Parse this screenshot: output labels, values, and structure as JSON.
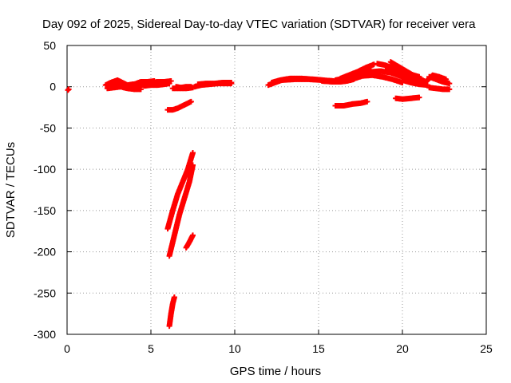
{
  "chart_data": {
    "type": "scatter",
    "title": "Day 092 of 2025, Sidereal Day-to-day VTEC variation (SDTVAR) for receiver vera",
    "xlabel": "GPS time / hours",
    "ylabel": "SDTVAR / TECUs",
    "xlim": [
      0,
      25
    ],
    "ylim": [
      -300,
      50
    ],
    "xticks": [
      "0",
      "5",
      "10",
      "15",
      "20",
      "25"
    ],
    "yticks": [
      "50",
      "0",
      "-50",
      "-100",
      "-150",
      "-200",
      "-250",
      "-300"
    ],
    "grid": true,
    "marker": "+",
    "color": "#ff0000",
    "series": [
      {
        "x": [
          0.05,
          0.1
        ],
        "y": [
          -4,
          -3
        ]
      },
      {
        "x": [
          2.3,
          2.6,
          3.0,
          3.3,
          3.6,
          3.9,
          4.2
        ],
        "y": [
          2,
          5,
          8,
          5,
          2,
          3,
          3
        ]
      },
      {
        "x": [
          2.6,
          3.0,
          3.4,
          3.8,
          4.2
        ],
        "y": [
          4,
          2,
          -1,
          -1,
          0
        ]
      },
      {
        "x": [
          2.4,
          2.8,
          3.2,
          3.6,
          4.0,
          4.4
        ],
        "y": [
          -2,
          -1,
          0,
          -2,
          -3,
          -3
        ]
      },
      {
        "x": [
          4.0,
          4.5,
          5.0,
          5.5,
          5.9
        ],
        "y": [
          0,
          2,
          4,
          5,
          5
        ]
      },
      {
        "x": [
          3.6,
          4.0,
          4.4,
          4.8,
          5.2
        ],
        "y": [
          1,
          3,
          6,
          6,
          7
        ]
      },
      {
        "x": [
          4.6,
          5.0,
          5.4,
          5.8,
          6.1
        ],
        "y": [
          1,
          2,
          2,
          3,
          4
        ]
      },
      {
        "x": [
          5.0,
          5.4,
          5.8,
          6.2
        ],
        "y": [
          5,
          6,
          6,
          7
        ]
      },
      {
        "x": [
          6.5,
          6.8,
          7.1,
          7.4
        ],
        "y": [
          0,
          -1,
          0,
          0
        ]
      },
      {
        "x": [
          6.3,
          6.7,
          7.1,
          7.5
        ],
        "y": [
          -2,
          -2,
          -2,
          -1
        ]
      },
      {
        "x": [
          7.6,
          8.0,
          8.5,
          9.0,
          9.5,
          9.8
        ],
        "y": [
          0,
          2,
          3,
          4,
          4,
          4
        ]
      },
      {
        "x": [
          7.8,
          8.3,
          8.8,
          9.3,
          9.8
        ],
        "y": [
          3,
          4,
          4,
          5,
          5
        ]
      },
      {
        "x": [
          6.0,
          6.3,
          6.6,
          7.0,
          7.4
        ],
        "y": [
          -28,
          -28,
          -26,
          -22,
          -18
        ]
      },
      {
        "x": [
          6.0,
          6.3,
          6.6,
          6.9,
          7.2,
          7.5
        ],
        "y": [
          -172,
          -150,
          -130,
          -115,
          -100,
          -80
        ]
      },
      {
        "x": [
          6.1,
          6.4,
          6.7,
          7.0,
          7.3,
          7.5
        ],
        "y": [
          -205,
          -180,
          -155,
          -135,
          -115,
          -95
        ]
      },
      {
        "x": [
          7.1,
          7.3,
          7.5
        ],
        "y": [
          -195,
          -188,
          -180
        ]
      },
      {
        "x": [
          6.1,
          6.2,
          6.3,
          6.4
        ],
        "y": [
          -290,
          -275,
          -263,
          -255
        ]
      },
      {
        "x": [
          12.2,
          12.7,
          13.3,
          14.0,
          14.7,
          15.3
        ],
        "y": [
          5,
          8,
          10,
          10,
          9,
          8
        ]
      },
      {
        "x": [
          12.0,
          12.8,
          13.6,
          14.4,
          15.2,
          15.9
        ],
        "y": [
          2,
          8,
          9,
          9,
          8,
          7
        ]
      },
      {
        "x": [
          15.2,
          15.8,
          16.3,
          16.7,
          17.1
        ],
        "y": [
          7,
          6,
          6,
          7,
          9
        ]
      },
      {
        "x": [
          16.0,
          16.5,
          17.0,
          17.5,
          18.0
        ],
        "y": [
          8,
          10,
          13,
          17,
          22
        ]
      },
      {
        "x": [
          16.3,
          16.8,
          17.3,
          17.8,
          18.3
        ],
        "y": [
          10,
          14,
          18,
          23,
          27
        ]
      },
      {
        "x": [
          17.0,
          17.6,
          18.2,
          18.8,
          19.4,
          20.0
        ],
        "y": [
          9,
          13,
          14,
          12,
          9,
          5
        ]
      },
      {
        "x": [
          17.5,
          18.1,
          18.7,
          19.3,
          19.9,
          20.5
        ],
        "y": [
          15,
          18,
          19,
          17,
          13,
          9
        ]
      },
      {
        "x": [
          18.5,
          19.0,
          19.5,
          20.0,
          20.5,
          21.0
        ],
        "y": [
          28,
          26,
          22,
          18,
          15,
          12
        ]
      },
      {
        "x": [
          19.0,
          19.5,
          20.0,
          20.5,
          21.0
        ],
        "y": [
          20,
          16,
          12,
          9,
          6
        ]
      },
      {
        "x": [
          19.3,
          19.8,
          20.3,
          20.8,
          21.3
        ],
        "y": [
          30,
          24,
          18,
          12,
          7
        ]
      },
      {
        "x": [
          20.0,
          20.5,
          21.0,
          21.5
        ],
        "y": [
          8,
          5,
          3,
          2
        ]
      },
      {
        "x": [
          21.2,
          21.5,
          21.8,
          22.2,
          22.6
        ],
        "y": [
          3,
          8,
          14,
          12,
          9
        ]
      },
      {
        "x": [
          21.6,
          22.0,
          22.4,
          22.8
        ],
        "y": [
          12,
          9,
          6,
          4
        ]
      },
      {
        "x": [
          21.6,
          22.0,
          22.4,
          22.8
        ],
        "y": [
          -1,
          -2,
          -3,
          -3
        ]
      },
      {
        "x": [
          16.0,
          16.5,
          17.0,
          17.5,
          17.9
        ],
        "y": [
          -23,
          -23,
          -21,
          -20,
          -18
        ]
      },
      {
        "x": [
          19.6,
          20.0,
          20.5,
          21.0
        ],
        "y": [
          -14,
          -15,
          -14,
          -13
        ]
      }
    ]
  }
}
